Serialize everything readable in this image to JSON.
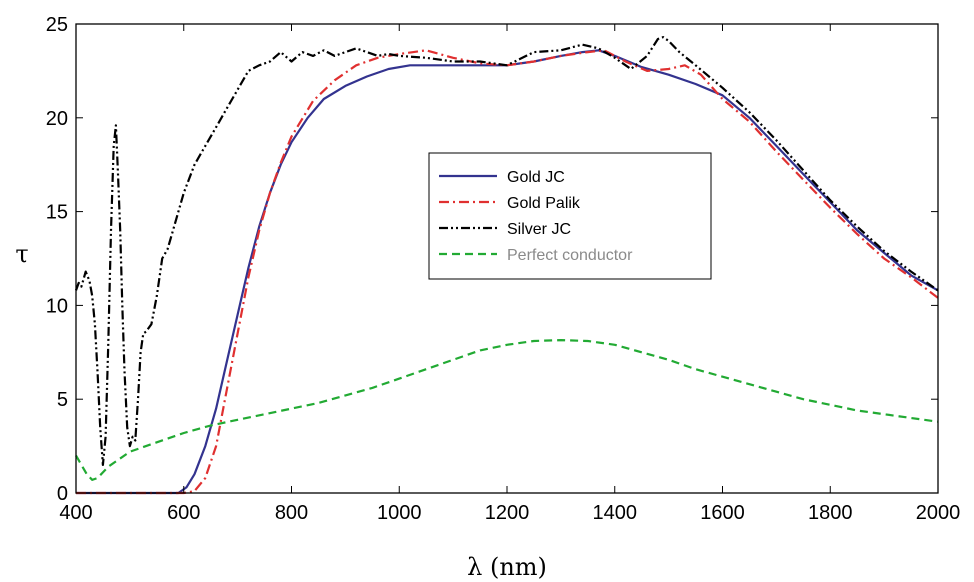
{
  "chart_data": {
    "type": "line",
    "xlabel": "λ (nm)",
    "ylabel": "τ",
    "xlim": [
      400,
      2000
    ],
    "ylim": [
      0,
      25
    ],
    "xticks": [
      400,
      600,
      800,
      1000,
      1200,
      1400,
      1600,
      1800,
      2000
    ],
    "yticks": [
      0,
      5,
      10,
      15,
      20,
      25
    ],
    "grid": false,
    "legend_position": "center",
    "series": [
      {
        "name": "Gold JC",
        "color": "#33338f",
        "dash": "solid",
        "x": [
          400,
          500,
          590,
          605,
          620,
          640,
          660,
          680,
          700,
          720,
          740,
          760,
          780,
          800,
          830,
          860,
          900,
          940,
          980,
          1020,
          1060,
          1100,
          1150,
          1200,
          1250,
          1300,
          1340,
          1370,
          1400,
          1450,
          1500,
          1550,
          1600,
          1650,
          1700,
          1750,
          1800,
          1850,
          1900,
          1950,
          2000
        ],
        "y": [
          0,
          0,
          0,
          0.3,
          1.0,
          2.5,
          4.5,
          7.0,
          9.5,
          12.0,
          14.2,
          16.0,
          17.5,
          18.7,
          20.0,
          21.0,
          21.7,
          22.2,
          22.6,
          22.8,
          22.8,
          22.8,
          22.8,
          22.8,
          23.0,
          23.3,
          23.5,
          23.6,
          23.3,
          22.7,
          22.3,
          21.8,
          21.2,
          20.0,
          18.5,
          17.0,
          15.5,
          14.0,
          12.8,
          11.6,
          10.8
        ]
      },
      {
        "name": "Gold Palik",
        "color": "#e03030",
        "dash": "dashdot",
        "x": [
          400,
          500,
          600,
          620,
          640,
          660,
          680,
          700,
          720,
          740,
          760,
          780,
          800,
          840,
          880,
          920,
          960,
          1000,
          1050,
          1100,
          1150,
          1200,
          1250,
          1300,
          1350,
          1380,
          1420,
          1460,
          1500,
          1530,
          1560,
          1600,
          1650,
          1700,
          1750,
          1800,
          1850,
          1900,
          1950,
          2000
        ],
        "y": [
          0,
          0,
          0,
          0.1,
          0.8,
          2.5,
          5.5,
          8.5,
          11.5,
          14.0,
          16.0,
          17.6,
          19.0,
          20.9,
          22.0,
          22.8,
          23.2,
          23.4,
          23.6,
          23.2,
          22.9,
          22.8,
          23.0,
          23.3,
          23.5,
          23.6,
          23.0,
          22.5,
          22.6,
          22.8,
          22.3,
          21.0,
          19.8,
          18.2,
          16.7,
          15.2,
          13.8,
          12.5,
          11.5,
          10.4
        ]
      },
      {
        "name": "Silver JC",
        "color": "#000000",
        "dash": "dashdotdot",
        "x": [
          400,
          405,
          410,
          418,
          425,
          430,
          435,
          440,
          445,
          450,
          455,
          460,
          465,
          470,
          474,
          478,
          482,
          486,
          490,
          495,
          500,
          505,
          510,
          515,
          520,
          525,
          530,
          540,
          550,
          560,
          570,
          580,
          590,
          600,
          620,
          640,
          660,
          680,
          700,
          720,
          740,
          760,
          780,
          800,
          820,
          840,
          860,
          880,
          900,
          920,
          940,
          960,
          980,
          1000,
          1050,
          1100,
          1150,
          1200,
          1250,
          1300,
          1340,
          1370,
          1400,
          1430,
          1460,
          1480,
          1490,
          1500,
          1520,
          1550,
          1600,
          1650,
          1700,
          1750,
          1800,
          1850,
          1900,
          1950,
          2000
        ],
        "y": [
          10.8,
          11.2,
          11.0,
          11.8,
          11.3,
          10.5,
          9.0,
          6.5,
          3.5,
          1.5,
          3.0,
          8.0,
          14.0,
          18.5,
          19.6,
          17.0,
          14.0,
          10.0,
          6.5,
          3.5,
          2.5,
          3.0,
          2.8,
          5.0,
          7.5,
          8.5,
          8.6,
          9.0,
          10.5,
          12.5,
          13.0,
          14.0,
          15.0,
          16.0,
          17.5,
          18.5,
          19.5,
          20.5,
          21.5,
          22.5,
          22.8,
          23.0,
          23.5,
          23.0,
          23.5,
          23.3,
          23.6,
          23.3,
          23.5,
          23.7,
          23.5,
          23.3,
          23.4,
          23.3,
          23.2,
          23.0,
          23.0,
          22.8,
          23.5,
          23.6,
          23.9,
          23.7,
          23.2,
          22.6,
          23.3,
          24.2,
          24.3,
          24.1,
          23.5,
          22.8,
          21.6,
          20.3,
          18.8,
          17.2,
          15.6,
          14.2,
          12.9,
          11.8,
          10.8
        ]
      },
      {
        "name": "Perfect conductor",
        "color": "#22aa33",
        "dash": "dashed",
        "x": [
          400,
          410,
          420,
          430,
          440,
          450,
          460,
          480,
          500,
          550,
          600,
          650,
          700,
          750,
          800,
          850,
          900,
          950,
          1000,
          1050,
          1100,
          1150,
          1200,
          1250,
          1300,
          1350,
          1400,
          1450,
          1500,
          1550,
          1600,
          1650,
          1700,
          1750,
          1800,
          1850,
          1900,
          1950,
          2000
        ],
        "y": [
          2.0,
          1.5,
          1.0,
          0.7,
          0.8,
          1.1,
          1.4,
          1.8,
          2.2,
          2.7,
          3.2,
          3.6,
          3.9,
          4.2,
          4.5,
          4.8,
          5.2,
          5.6,
          6.1,
          6.6,
          7.1,
          7.6,
          7.9,
          8.1,
          8.15,
          8.1,
          7.9,
          7.5,
          7.1,
          6.6,
          6.2,
          5.8,
          5.4,
          5.0,
          4.7,
          4.4,
          4.2,
          4.0,
          3.8
        ]
      }
    ]
  }
}
